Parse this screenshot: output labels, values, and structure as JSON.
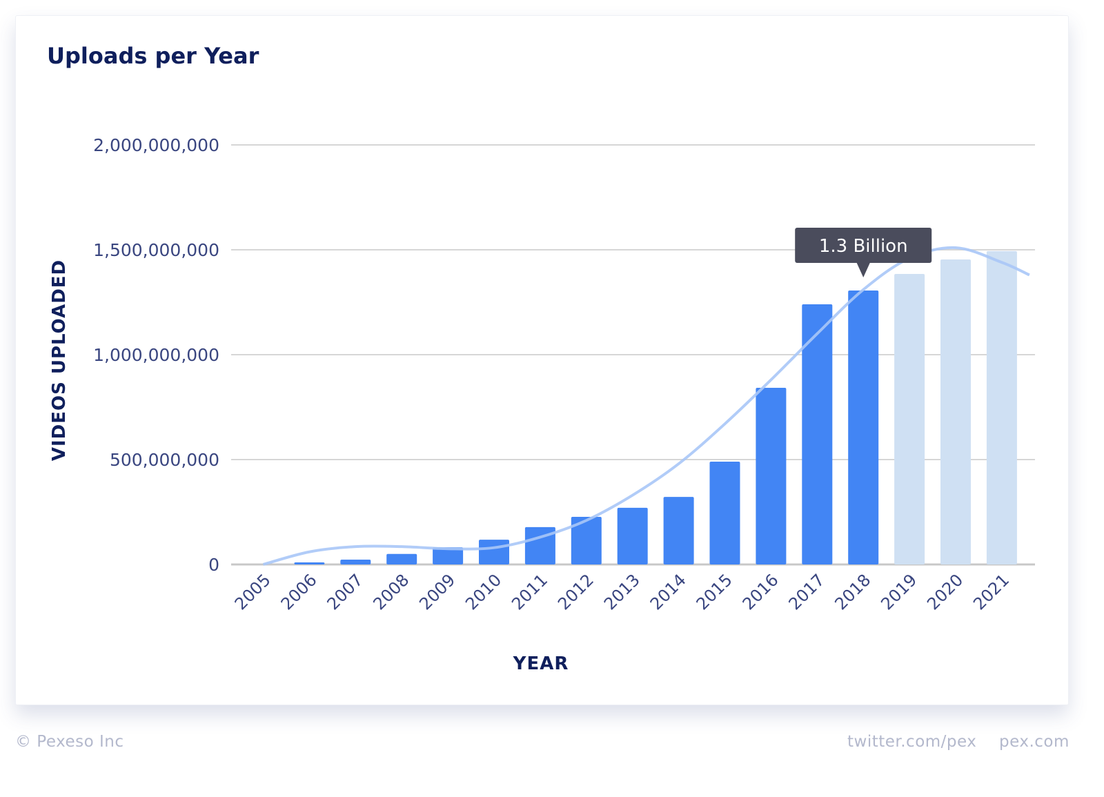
{
  "chart_data": {
    "type": "bar",
    "title": "Uploads per Year",
    "xlabel": "YEAR",
    "ylabel": "VIDEOS UPLOADED",
    "ylim": [
      0,
      2000000000
    ],
    "yticks": [
      0,
      500000000,
      1000000000,
      1500000000,
      2000000000
    ],
    "ytick_labels": [
      "0",
      "500,000,000",
      "1,000,000,000",
      "1,500,000,000",
      "2,000,000,000"
    ],
    "grid": true,
    "categories": [
      "2005",
      "2006",
      "2007",
      "2008",
      "2009",
      "2010",
      "2011",
      "2012",
      "2013",
      "2014",
      "2015",
      "2016",
      "2017",
      "2018",
      "2019",
      "2020",
      "2021"
    ],
    "series": [
      {
        "name": "Uploads",
        "values": [
          0,
          10000000,
          23000000,
          50000000,
          82000000,
          118000000,
          178000000,
          227000000,
          270000000,
          322000000,
          490000000,
          842000000,
          1240000000,
          1306000000,
          1385000000,
          1454000000,
          1494000000
        ],
        "projected": [
          false,
          false,
          false,
          false,
          false,
          false,
          false,
          false,
          false,
          false,
          false,
          false,
          false,
          false,
          true,
          true,
          true
        ]
      },
      {
        "name": "Trend",
        "type": "line",
        "values": [
          0,
          60000000,
          85000000,
          85000000,
          75000000,
          80000000,
          130000000,
          210000000,
          330000000,
          480000000,
          670000000,
          880000000,
          1100000000,
          1310000000,
          1460000000,
          1510000000,
          1440000000
        ]
      }
    ],
    "tooltip": {
      "category": "2018",
      "text": "1.3 Billion"
    },
    "colors": {
      "bar": "#4285f4",
      "projected": "#cfe0f3",
      "trend": "#a9c7f7",
      "tooltip": "#4a4c5c",
      "grid": "#d6d6d6",
      "axis_text": "#3a4680",
      "label": "#0f1f5c"
    }
  },
  "footer": {
    "copyright": "© Pexeso Inc",
    "twitter": "twitter.com/pex",
    "site": "pex.com"
  }
}
